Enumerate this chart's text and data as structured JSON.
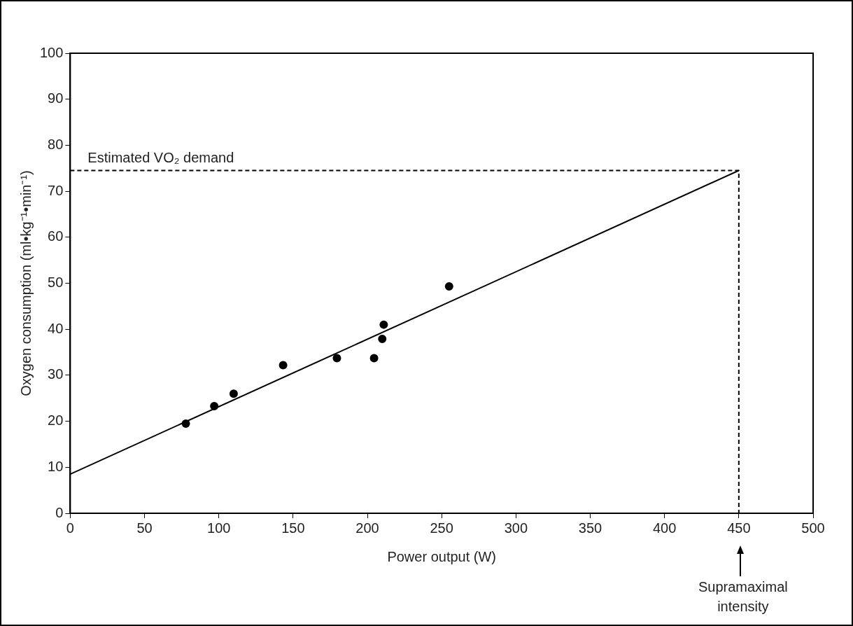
{
  "chart_data": {
    "type": "scatter",
    "xlabel": "Power output (W)",
    "ylabel": "Oxygen consumption (ml•kg⁻¹•min⁻¹)",
    "xlim": [
      0,
      500
    ],
    "xticks": [
      0,
      50,
      100,
      150,
      200,
      250,
      300,
      350,
      400,
      450,
      500
    ],
    "ylim": [
      0,
      100
    ],
    "yticks": [
      0,
      10,
      20,
      30,
      40,
      50,
      60,
      70,
      80,
      90,
      100
    ],
    "grid": false,
    "legend": false,
    "marker": "circle",
    "series": [
      {
        "color": "#000000",
        "x": [
          77.8,
          96.9,
          110,
          143.3,
          179.5,
          204.5,
          210,
          211,
          255
        ],
        "values": [
          19.5,
          23.3,
          26.0,
          32.2,
          33.7,
          33.7,
          37.9,
          41.0,
          49.3
        ]
      },
      {
        "type": "line",
        "color": "#000000",
        "marker": "none",
        "line_style": "solid",
        "x": [
          0,
          450
        ],
        "values": [
          8.5,
          74.5
        ]
      },
      {
        "type": "line",
        "color": "#000000",
        "marker": "none",
        "line_style": "dashed",
        "x": [
          0,
          450,
          450
        ],
        "values": [
          74.5,
          74.5,
          0
        ]
      }
    ],
    "annotations": [
      {
        "text": "Estimated VO₂ demand",
        "x": 0,
        "y": 74.5
      },
      "Supramaximal intensity"
    ]
  }
}
